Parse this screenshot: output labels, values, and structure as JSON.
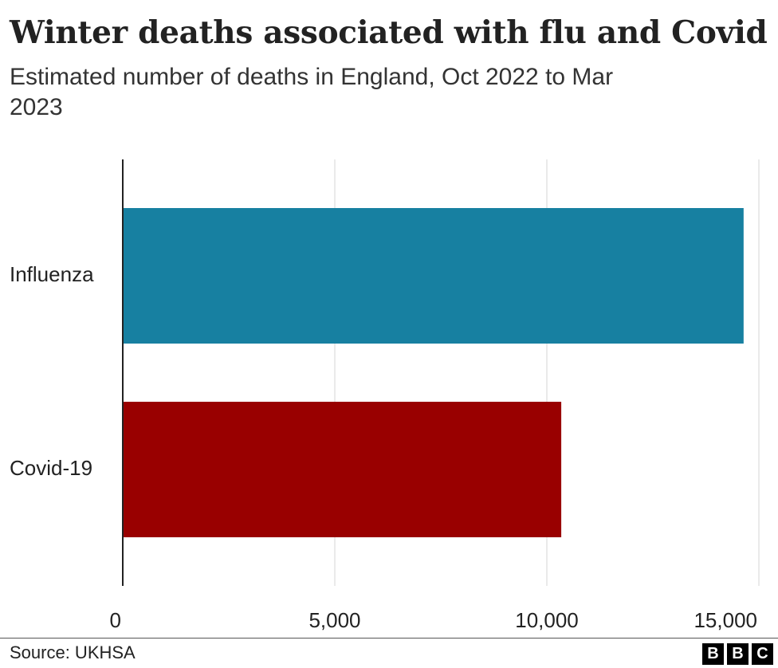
{
  "title": "Winter deaths associated with flu and Covid",
  "subtitle": "Estimated number of deaths in England, Oct 2022 to Mar 2023",
  "chart_data": {
    "type": "bar",
    "orientation": "horizontal",
    "categories": [
      "Influenza",
      "Covid-19"
    ],
    "values": [
      14640,
      10340
    ],
    "colors": [
      "#1780a1",
      "#990000"
    ],
    "xlim": [
      0,
      15000
    ],
    "x_ticks": [
      0,
      5000,
      10000,
      15000
    ],
    "x_tick_labels": [
      "0",
      "5,000",
      "10,000",
      "15,000"
    ],
    "grid": true,
    "title": "Winter deaths associated with flu and Covid",
    "xlabel": "",
    "ylabel": ""
  },
  "footer": {
    "source": "Source: UKHSA",
    "logo_letters": [
      "B",
      "B",
      "C"
    ]
  }
}
